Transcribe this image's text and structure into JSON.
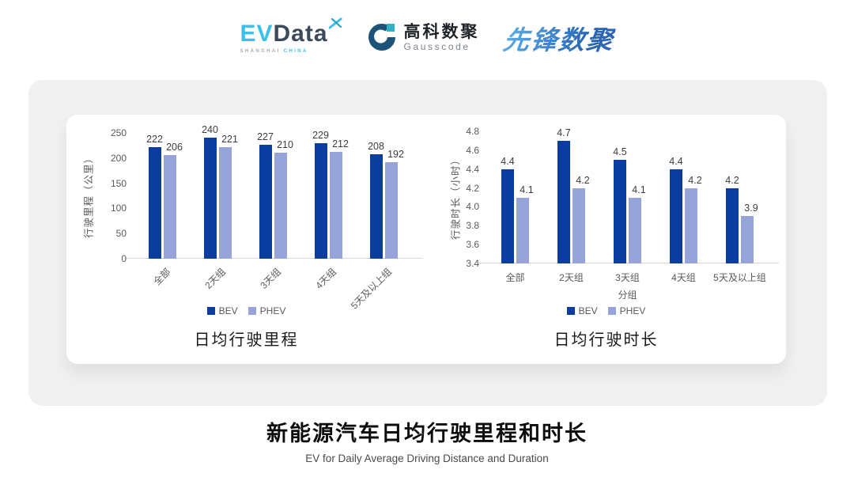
{
  "header": {
    "evdata": {
      "ev": "EV",
      "data": "Data",
      "sub_left": "SHANGHAI",
      "sub_right": "CHINA"
    },
    "gausscode": {
      "cn": "高科数聚",
      "en": "Gausscode"
    },
    "pioneer": {
      "cn": "先锋数聚"
    }
  },
  "footer": {
    "title": "新能源汽车日均行驶里程和时长",
    "subtitle": "EV for Daily Average Driving Distance and Duration"
  },
  "colors": {
    "bev": "#0b3da1",
    "phev": "#97a4d9",
    "axis_text": "#595959",
    "value_label_text": "#3d3d3d",
    "card_bg": "#f0f0f0",
    "evdata_cyan": "#3cc0ea",
    "evdata_dark": "#3c4a5c",
    "gauss_blue": "#1d5379",
    "gauss_teal": "#2fb3c2",
    "pioneer_blue": "#2e73c0"
  },
  "chart_data": [
    {
      "type": "bar",
      "title": "日均行驶里程",
      "ylabel": "行驶里程（公里）",
      "xlabel": "",
      "categories": [
        "全部",
        "2天组",
        "3天组",
        "4天组",
        "5天及以上组"
      ],
      "series": [
        {
          "name": "BEV",
          "color": "#0b3da1",
          "values": [
            222,
            240,
            227,
            229,
            208
          ]
        },
        {
          "name": "PHEV",
          "color": "#97a4d9",
          "values": [
            206,
            221,
            210,
            212,
            192
          ]
        }
      ],
      "ylim": [
        0,
        250
      ],
      "yticks": [
        "0",
        "50",
        "100",
        "150",
        "200",
        "250"
      ],
      "value_decimals": 0,
      "x_label_rotation": 45,
      "grid": false,
      "legend_position": "bottom"
    },
    {
      "type": "bar",
      "title": "日均行驶时长",
      "ylabel": "行驶时长（小时）",
      "xlabel": "分组",
      "categories": [
        "全部",
        "2天组",
        "3天组",
        "4天组",
        "5天及以上组"
      ],
      "series": [
        {
          "name": "BEV",
          "color": "#0b3da1",
          "values": [
            4.4,
            4.7,
            4.5,
            4.4,
            4.2
          ]
        },
        {
          "name": "PHEV",
          "color": "#97a4d9",
          "values": [
            4.1,
            4.2,
            4.1,
            4.2,
            3.9
          ]
        }
      ],
      "ylim": [
        3.4,
        4.8
      ],
      "yticks": [
        "3.4",
        "3.6",
        "3.8",
        "4.0",
        "4.2",
        "4.4",
        "4.6",
        "4.8"
      ],
      "value_decimals": 1,
      "x_label_rotation": 0,
      "grid": false,
      "legend_position": "bottom"
    }
  ]
}
